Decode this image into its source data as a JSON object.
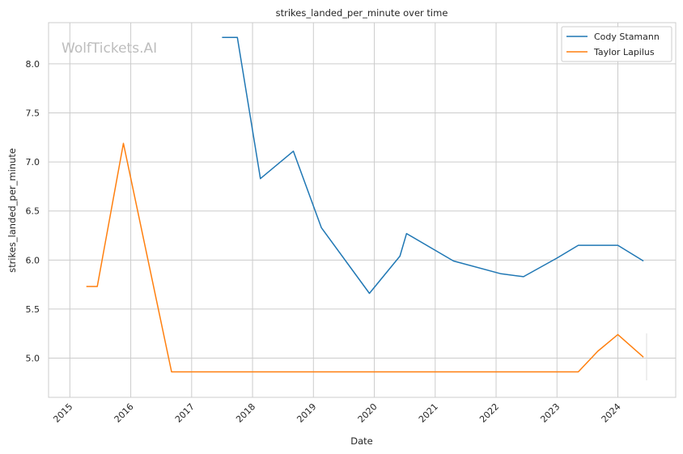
{
  "chart_data": {
    "type": "line",
    "title": "strikes_landed_per_minute over time",
    "xlabel": "Date",
    "ylabel": "strikes_landed_per_minute",
    "watermark": "WolfTickets.AI",
    "xlim": [
      2014.65,
      2024.95
    ],
    "ylim": [
      4.6,
      8.42
    ],
    "x_ticks": [
      2015,
      2016,
      2017,
      2018,
      2019,
      2020,
      2021,
      2022,
      2023,
      2024
    ],
    "y_ticks": [
      5.0,
      5.5,
      6.0,
      6.5,
      7.0,
      7.5,
      8.0
    ],
    "x_tick_labels": [
      "2015",
      "2016",
      "2017",
      "2018",
      "2019",
      "2020",
      "2021",
      "2022",
      "2023",
      "2024"
    ],
    "y_tick_labels": [
      "5.0",
      "5.5",
      "6.0",
      "6.5",
      "7.0",
      "7.5",
      "8.0"
    ],
    "grid": true,
    "legend_position": "top-right",
    "series": [
      {
        "name": "Cody Stamann",
        "color": "#1f77b4",
        "x": [
          2017.5,
          2017.75,
          2018.13,
          2018.67,
          2019.13,
          2019.92,
          2020.42,
          2020.53,
          2021.3,
          2022.08,
          2022.45,
          2023.0,
          2023.35,
          2024.0,
          2024.42
        ],
        "y": [
          8.27,
          8.27,
          6.83,
          7.11,
          6.33,
          5.66,
          6.04,
          6.27,
          5.99,
          5.86,
          5.83,
          6.02,
          6.15,
          6.15,
          5.99
        ]
      },
      {
        "name": "Taylor Lapilus",
        "color": "#ff7f0e",
        "x": [
          2015.27,
          2015.45,
          2015.88,
          2016.67,
          2023.35,
          2023.67,
          2024.0,
          2024.42
        ],
        "y": [
          5.73,
          5.73,
          7.19,
          4.86,
          4.86,
          5.07,
          5.24,
          5.01
        ]
      }
    ]
  }
}
